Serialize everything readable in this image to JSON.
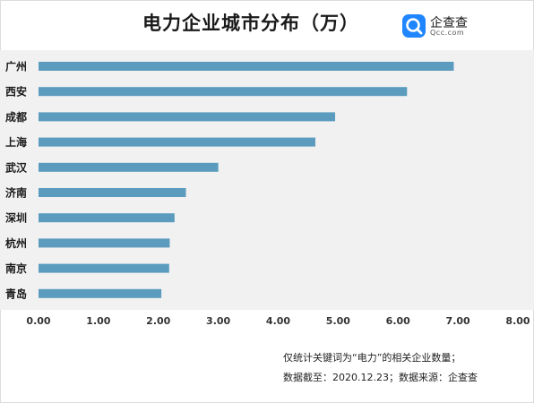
{
  "header": {
    "title": "电力企业城市分布（万）"
  },
  "brand": {
    "name": "企查查",
    "domain": "Qcc.com",
    "color": "#1f86ff"
  },
  "footnote": {
    "line1": "仅统计关键词为“电力”的相关企业数量；",
    "line2": "数据截至：2020.12.23；数据来源：企查查"
  },
  "chart_data": {
    "type": "bar",
    "orientation": "horizontal",
    "title": "电力企业城市分布（万）",
    "categories": [
      "广州",
      "西安",
      "成都",
      "上海",
      "武汉",
      "济南",
      "深圳",
      "杭州",
      "南京",
      "青岛"
    ],
    "values": [
      6.93,
      6.15,
      4.95,
      4.62,
      3.0,
      2.46,
      2.27,
      2.19,
      2.18,
      2.05
    ],
    "xlim": [
      0,
      8
    ],
    "xticks": [
      "0.00",
      "1.00",
      "2.00",
      "3.00",
      "4.00",
      "5.00",
      "6.00",
      "7.00",
      "8.00"
    ],
    "grid": false,
    "bar_color": "#5b9bbd"
  }
}
